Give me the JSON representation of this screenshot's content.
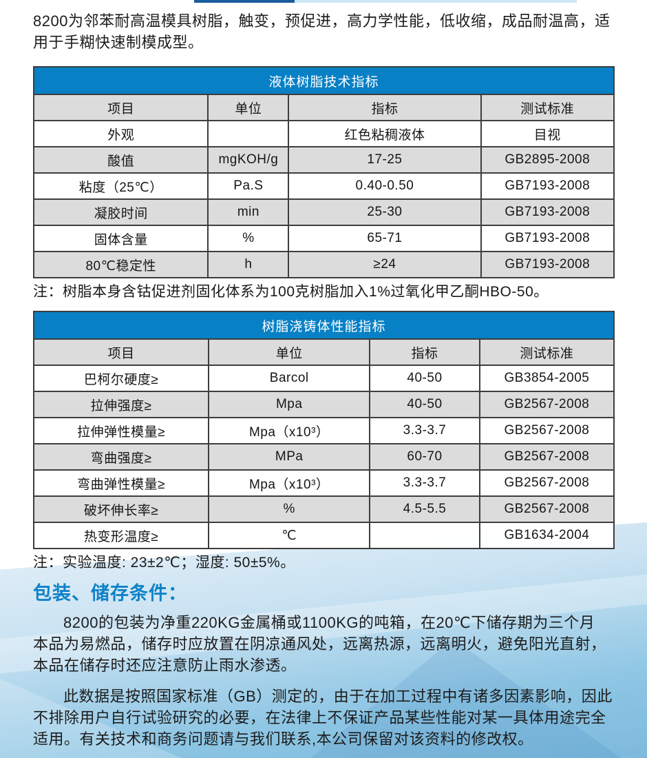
{
  "intro": "8200为邻苯耐高温模具树脂，触变，预促进，高力学性能，低收缩，成品耐温高，适用于手糊快速制模成型。",
  "tables": [
    {
      "title": "液体树脂技术指标",
      "columns": [
        "项目",
        "单位",
        "指标",
        "测试标准"
      ],
      "rows": [
        [
          "外观",
          "",
          "红色粘稠液体",
          "目视"
        ],
        [
          "酸值",
          "mgKOH/g",
          "17-25",
          "GB2895-2008"
        ],
        [
          "粘度（25℃）",
          "Pa.S",
          "0.40-0.50",
          "GB7193-2008"
        ],
        [
          "凝胶时间",
          "min",
          "25-30",
          "GB7193-2008"
        ],
        [
          "固体含量",
          "%",
          "65-71",
          "GB7193-2008"
        ],
        [
          "80℃稳定性",
          "h",
          "≥24",
          "GB7193-2008"
        ]
      ],
      "note": "注：树脂本身含钴促进剂固化体系为100克树脂加入1%过氧化甲乙酮HBO-50。"
    },
    {
      "title": "树脂浇铸体性能指标",
      "columns": [
        "项目",
        "单位",
        "指标",
        "测试标准"
      ],
      "rows": [
        [
          "巴柯尔硬度≥",
          "Barcol",
          "40-50",
          "GB3854-2005"
        ],
        [
          "拉伸强度≥",
          "Mpa",
          "40-50",
          "GB2567-2008"
        ],
        [
          "拉伸弹性模量≥",
          "Mpa（x10³）",
          "3.3-3.7",
          "GB2567-2008"
        ],
        [
          "弯曲强度≥",
          "MPa",
          "60-70",
          "GB2567-2008"
        ],
        [
          "弯曲弹性模量≥",
          "Mpa（x10³）",
          "3.3-3.7",
          "GB2567-2008"
        ],
        [
          "破坏伸长率≥",
          "%",
          "4.5-5.5",
          "GB2567-2008"
        ],
        [
          "热变形温度≥",
          "℃",
          "",
          "GB1634-2004"
        ]
      ],
      "note": "注：实验温度: 23±2℃；湿度: 50±5%。"
    }
  ],
  "storage_section": {
    "heading": "包装、储存条件：",
    "paragraphs": [
      "8200的包装为净重220KG金属桶或1100KG的吨箱，在20℃下储存期为三个月 本品为易燃品，储存时应放置在阴凉通风处，远离热源，远离明火，避免阳光直射，本品在储存时还应注意防止雨水渗透。",
      "此数据是按照国家标准（GB）测定的，由于在加工过程中有诸多因素影响，因此不排除用户自行试验研究的必要，在法律上不保证产品某些性能对某一具体用途完全适用。有关技术和商务问题请与我们联系,本公司保留对该资料的修改权。"
    ]
  },
  "colors": {
    "header_blue": "#0880c5",
    "heading_blue": "#0e82c8",
    "row_gray": "#dcdcdc",
    "bottom_blue": "#7db9dd"
  }
}
